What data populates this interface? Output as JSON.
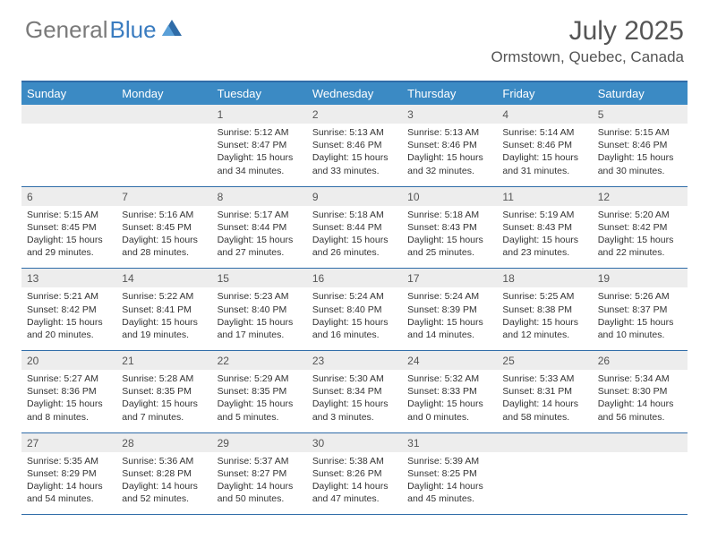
{
  "logo": {
    "word1": "General",
    "word2": "Blue"
  },
  "title": "July 2025",
  "location": "Ormstown, Quebec, Canada",
  "colors": {
    "header_bg": "#3b8ac4",
    "header_text": "#ffffff",
    "border": "#2f6ca8",
    "daynum_bg": "#ededed",
    "logo_gray": "#7a7a7a",
    "logo_blue": "#3a7cc0"
  },
  "day_names": [
    "Sunday",
    "Monday",
    "Tuesday",
    "Wednesday",
    "Thursday",
    "Friday",
    "Saturday"
  ],
  "weeks": [
    [
      null,
      null,
      {
        "n": "1",
        "sr": "Sunrise: 5:12 AM",
        "ss": "Sunset: 8:47 PM",
        "d1": "Daylight: 15 hours",
        "d2": "and 34 minutes."
      },
      {
        "n": "2",
        "sr": "Sunrise: 5:13 AM",
        "ss": "Sunset: 8:46 PM",
        "d1": "Daylight: 15 hours",
        "d2": "and 33 minutes."
      },
      {
        "n": "3",
        "sr": "Sunrise: 5:13 AM",
        "ss": "Sunset: 8:46 PM",
        "d1": "Daylight: 15 hours",
        "d2": "and 32 minutes."
      },
      {
        "n": "4",
        "sr": "Sunrise: 5:14 AM",
        "ss": "Sunset: 8:46 PM",
        "d1": "Daylight: 15 hours",
        "d2": "and 31 minutes."
      },
      {
        "n": "5",
        "sr": "Sunrise: 5:15 AM",
        "ss": "Sunset: 8:46 PM",
        "d1": "Daylight: 15 hours",
        "d2": "and 30 minutes."
      }
    ],
    [
      {
        "n": "6",
        "sr": "Sunrise: 5:15 AM",
        "ss": "Sunset: 8:45 PM",
        "d1": "Daylight: 15 hours",
        "d2": "and 29 minutes."
      },
      {
        "n": "7",
        "sr": "Sunrise: 5:16 AM",
        "ss": "Sunset: 8:45 PM",
        "d1": "Daylight: 15 hours",
        "d2": "and 28 minutes."
      },
      {
        "n": "8",
        "sr": "Sunrise: 5:17 AM",
        "ss": "Sunset: 8:44 PM",
        "d1": "Daylight: 15 hours",
        "d2": "and 27 minutes."
      },
      {
        "n": "9",
        "sr": "Sunrise: 5:18 AM",
        "ss": "Sunset: 8:44 PM",
        "d1": "Daylight: 15 hours",
        "d2": "and 26 minutes."
      },
      {
        "n": "10",
        "sr": "Sunrise: 5:18 AM",
        "ss": "Sunset: 8:43 PM",
        "d1": "Daylight: 15 hours",
        "d2": "and 25 minutes."
      },
      {
        "n": "11",
        "sr": "Sunrise: 5:19 AM",
        "ss": "Sunset: 8:43 PM",
        "d1": "Daylight: 15 hours",
        "d2": "and 23 minutes."
      },
      {
        "n": "12",
        "sr": "Sunrise: 5:20 AM",
        "ss": "Sunset: 8:42 PM",
        "d1": "Daylight: 15 hours",
        "d2": "and 22 minutes."
      }
    ],
    [
      {
        "n": "13",
        "sr": "Sunrise: 5:21 AM",
        "ss": "Sunset: 8:42 PM",
        "d1": "Daylight: 15 hours",
        "d2": "and 20 minutes."
      },
      {
        "n": "14",
        "sr": "Sunrise: 5:22 AM",
        "ss": "Sunset: 8:41 PM",
        "d1": "Daylight: 15 hours",
        "d2": "and 19 minutes."
      },
      {
        "n": "15",
        "sr": "Sunrise: 5:23 AM",
        "ss": "Sunset: 8:40 PM",
        "d1": "Daylight: 15 hours",
        "d2": "and 17 minutes."
      },
      {
        "n": "16",
        "sr": "Sunrise: 5:24 AM",
        "ss": "Sunset: 8:40 PM",
        "d1": "Daylight: 15 hours",
        "d2": "and 16 minutes."
      },
      {
        "n": "17",
        "sr": "Sunrise: 5:24 AM",
        "ss": "Sunset: 8:39 PM",
        "d1": "Daylight: 15 hours",
        "d2": "and 14 minutes."
      },
      {
        "n": "18",
        "sr": "Sunrise: 5:25 AM",
        "ss": "Sunset: 8:38 PM",
        "d1": "Daylight: 15 hours",
        "d2": "and 12 minutes."
      },
      {
        "n": "19",
        "sr": "Sunrise: 5:26 AM",
        "ss": "Sunset: 8:37 PM",
        "d1": "Daylight: 15 hours",
        "d2": "and 10 minutes."
      }
    ],
    [
      {
        "n": "20",
        "sr": "Sunrise: 5:27 AM",
        "ss": "Sunset: 8:36 PM",
        "d1": "Daylight: 15 hours",
        "d2": "and 8 minutes."
      },
      {
        "n": "21",
        "sr": "Sunrise: 5:28 AM",
        "ss": "Sunset: 8:35 PM",
        "d1": "Daylight: 15 hours",
        "d2": "and 7 minutes."
      },
      {
        "n": "22",
        "sr": "Sunrise: 5:29 AM",
        "ss": "Sunset: 8:35 PM",
        "d1": "Daylight: 15 hours",
        "d2": "and 5 minutes."
      },
      {
        "n": "23",
        "sr": "Sunrise: 5:30 AM",
        "ss": "Sunset: 8:34 PM",
        "d1": "Daylight: 15 hours",
        "d2": "and 3 minutes."
      },
      {
        "n": "24",
        "sr": "Sunrise: 5:32 AM",
        "ss": "Sunset: 8:33 PM",
        "d1": "Daylight: 15 hours",
        "d2": "and 0 minutes."
      },
      {
        "n": "25",
        "sr": "Sunrise: 5:33 AM",
        "ss": "Sunset: 8:31 PM",
        "d1": "Daylight: 14 hours",
        "d2": "and 58 minutes."
      },
      {
        "n": "26",
        "sr": "Sunrise: 5:34 AM",
        "ss": "Sunset: 8:30 PM",
        "d1": "Daylight: 14 hours",
        "d2": "and 56 minutes."
      }
    ],
    [
      {
        "n": "27",
        "sr": "Sunrise: 5:35 AM",
        "ss": "Sunset: 8:29 PM",
        "d1": "Daylight: 14 hours",
        "d2": "and 54 minutes."
      },
      {
        "n": "28",
        "sr": "Sunrise: 5:36 AM",
        "ss": "Sunset: 8:28 PM",
        "d1": "Daylight: 14 hours",
        "d2": "and 52 minutes."
      },
      {
        "n": "29",
        "sr": "Sunrise: 5:37 AM",
        "ss": "Sunset: 8:27 PM",
        "d1": "Daylight: 14 hours",
        "d2": "and 50 minutes."
      },
      {
        "n": "30",
        "sr": "Sunrise: 5:38 AM",
        "ss": "Sunset: 8:26 PM",
        "d1": "Daylight: 14 hours",
        "d2": "and 47 minutes."
      },
      {
        "n": "31",
        "sr": "Sunrise: 5:39 AM",
        "ss": "Sunset: 8:25 PM",
        "d1": "Daylight: 14 hours",
        "d2": "and 45 minutes."
      },
      null,
      null
    ]
  ]
}
